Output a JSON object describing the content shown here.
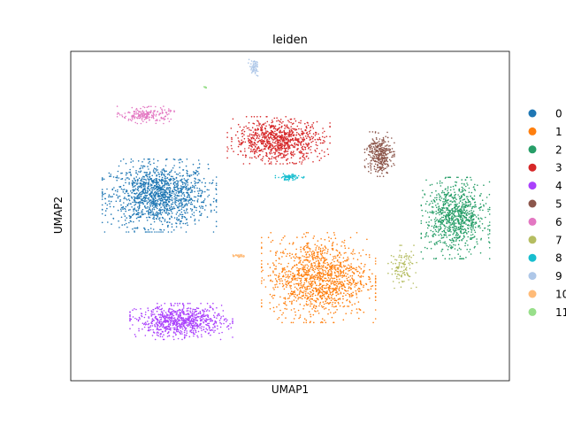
{
  "chart_data": {
    "type": "scatter",
    "title": "leiden",
    "xlabel": "UMAP1",
    "ylabel": "UMAP2",
    "grid": false,
    "ticks": false,
    "legend_position": "right, outside plot",
    "legend": [
      {
        "label": "0",
        "color": "#1f77b4"
      },
      {
        "label": "1",
        "color": "#ff7f0e"
      },
      {
        "label": "2",
        "color": "#279e68"
      },
      {
        "label": "3",
        "color": "#d62728"
      },
      {
        "label": "4",
        "color": "#aa40fc"
      },
      {
        "label": "5",
        "color": "#8c564b"
      },
      {
        "label": "6",
        "color": "#e377c2"
      },
      {
        "label": "7",
        "color": "#b5bd61"
      },
      {
        "label": "8",
        "color": "#17becf"
      },
      {
        "label": "9",
        "color": "#aec7e8"
      },
      {
        "label": "10",
        "color": "#ffbb78"
      },
      {
        "label": "11",
        "color": "#98df8a"
      }
    ],
    "xlim": [
      0,
      100
    ],
    "ylim": [
      0,
      100
    ],
    "clusters": [
      {
        "name": "0",
        "cx": 20.2,
        "cy": 56.2,
        "spread_x": 10,
        "spread_y": 8.5,
        "count": 1400
      },
      {
        "name": "1",
        "cx": 56.5,
        "cy": 31.3,
        "spread_x": 10,
        "spread_y": 10.5,
        "count": 1300
      },
      {
        "name": "2",
        "cx": 87.7,
        "cy": 49.4,
        "spread_x": 6,
        "spread_y": 9.5,
        "count": 900
      },
      {
        "name": "3",
        "cx": 47.4,
        "cy": 73.0,
        "spread_x": 9,
        "spread_y": 5.5,
        "count": 900
      },
      {
        "name": "4",
        "cx": 25.2,
        "cy": 18.0,
        "spread_x": 9,
        "spread_y": 4.2,
        "count": 800
      },
      {
        "name": "5",
        "cx": 70.4,
        "cy": 68.8,
        "spread_x": 2.6,
        "spread_y": 5.2,
        "count": 350
      },
      {
        "name": "6",
        "cx": 17.1,
        "cy": 80.7,
        "spread_x": 5,
        "spread_y": 2,
        "count": 200
      },
      {
        "name": "7",
        "cx": 75.6,
        "cy": 34.6,
        "spread_x": 2.5,
        "spread_y": 5,
        "count": 110
      },
      {
        "name": "8",
        "cx": 49.9,
        "cy": 61.8,
        "spread_x": 2.5,
        "spread_y": 0.8,
        "count": 80
      },
      {
        "name": "9",
        "cx": 41.8,
        "cy": 95.0,
        "spread_x": 1,
        "spread_y": 2,
        "count": 60
      },
      {
        "name": "10",
        "cx": 38.2,
        "cy": 37.9,
        "spread_x": 1.2,
        "spread_y": 0.4,
        "count": 30
      },
      {
        "name": "11",
        "cx": 30.8,
        "cy": 89.1,
        "spread_x": 0.3,
        "spread_y": 0.3,
        "count": 8
      }
    ]
  }
}
